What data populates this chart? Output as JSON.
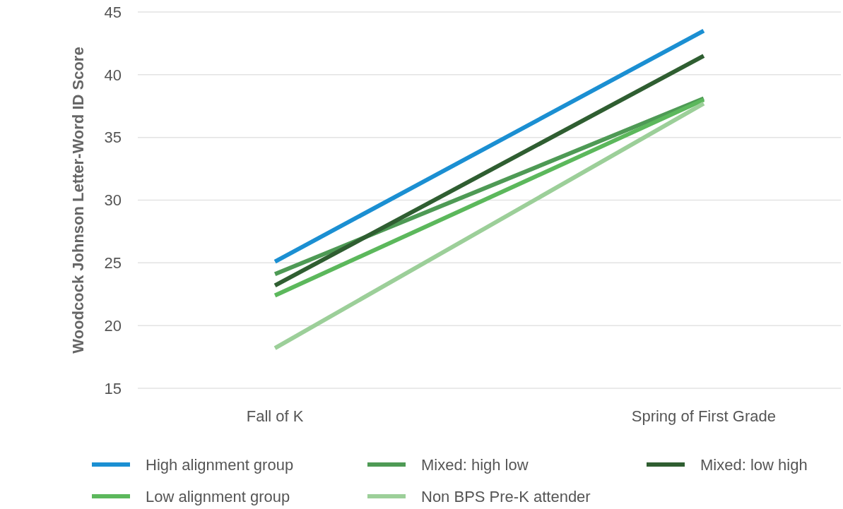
{
  "chart_data": {
    "type": "line",
    "ylabel": "Woodcock Johnson Letter-Word ID Score",
    "categories": [
      "Fall of K",
      "Spring of First Grade"
    ],
    "series": [
      {
        "name": "High alignment group",
        "color": "#1b8fd2",
        "values": [
          25.1,
          43.5
        ]
      },
      {
        "name": "Mixed: high low",
        "color": "#4e9a55",
        "values": [
          24.1,
          38.1
        ]
      },
      {
        "name": "Mixed: low high",
        "color": "#2f5e31",
        "values": [
          23.2,
          41.5
        ]
      },
      {
        "name": "Low alignment group",
        "color": "#5cb85c",
        "values": [
          22.4,
          38.0
        ]
      },
      {
        "name": "Non BPS Pre-K attender",
        "color": "#9ccf99",
        "values": [
          18.2,
          37.7
        ]
      }
    ],
    "ylim": [
      15,
      45
    ],
    "yticks": [
      15,
      20,
      25,
      30,
      35,
      40,
      45
    ],
    "grid": "y",
    "legend": "bottom",
    "marker": "none",
    "line_style": "solid"
  }
}
